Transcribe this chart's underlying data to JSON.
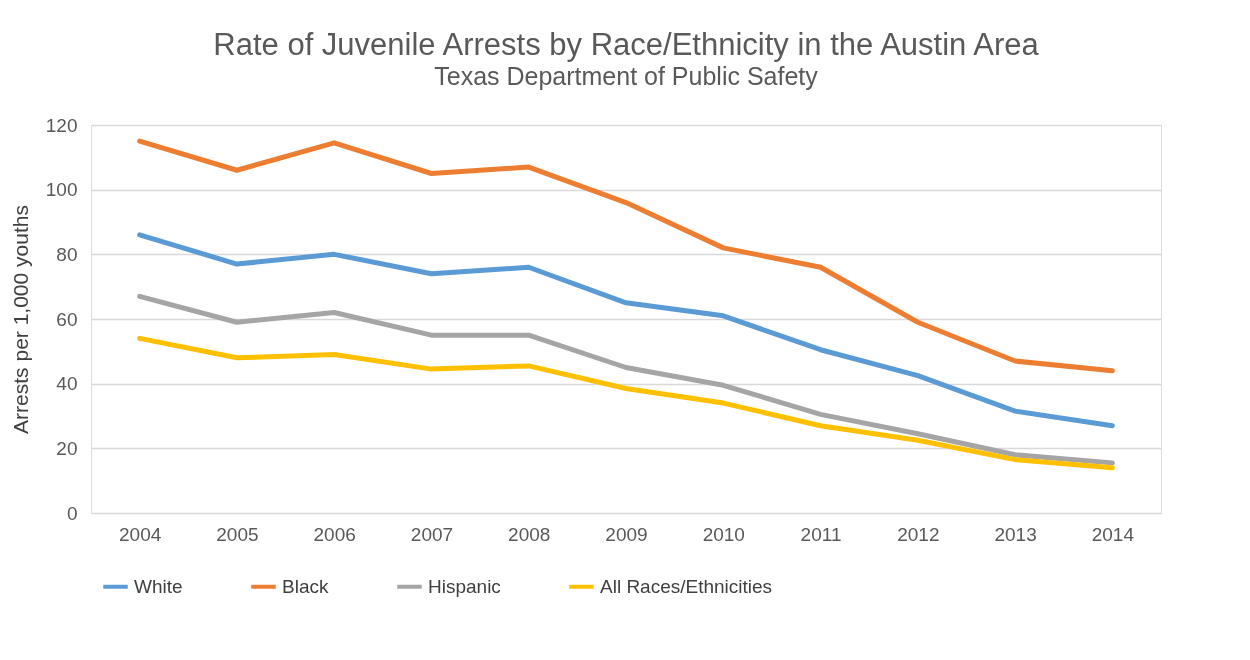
{
  "chart_data": {
    "type": "line",
    "title": "Rate of Juvenile Arrests by Race/Ethnicity in the Austin Area",
    "subtitle": "Texas Department of Public Safety",
    "ylabel": "Arrests per 1,000 youths",
    "categories": [
      "2004",
      "2005",
      "2006",
      "2007",
      "2008",
      "2009",
      "2010",
      "2011",
      "2012",
      "2013",
      "2014"
    ],
    "series": [
      {
        "name": "White",
        "color": "#5b9bd5",
        "values": [
          86,
          77,
          80,
          74,
          76,
          65,
          61,
          50.5,
          42.5,
          31.5,
          27
        ]
      },
      {
        "name": "Black",
        "color": "#ed7d31",
        "values": [
          115,
          106,
          114.5,
          105,
          107,
          96,
          82,
          76,
          59,
          47,
          44
        ]
      },
      {
        "name": "Hispanic",
        "color": "#a5a5a5",
        "values": [
          67,
          59,
          62,
          55,
          55,
          45,
          39.5,
          30.5,
          24.5,
          18,
          15.5
        ]
      },
      {
        "name": "All Races/Ethnicities",
        "color": "#ffc000",
        "values": [
          54,
          48,
          49,
          44.5,
          45.5,
          38.5,
          34,
          27,
          22.5,
          16.5,
          14
        ]
      }
    ],
    "ylim": [
      0,
      120
    ],
    "yticks": [
      0,
      20,
      40,
      60,
      80,
      100,
      120
    ],
    "grid": "y",
    "legend": "bottom",
    "marker": "none",
    "line_style": "solid"
  }
}
